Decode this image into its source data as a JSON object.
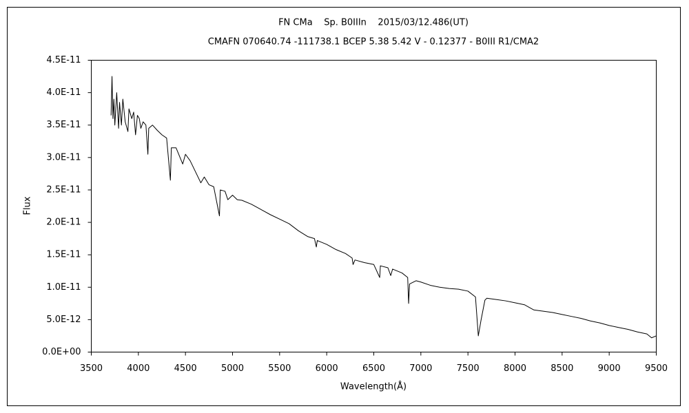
{
  "chart_data": {
    "type": "line",
    "title": "FN CMa    Sp. B0IIIn    2015/03/12.486(UT)",
    "subtitle": "CMAFN 070640.74 -111738.1 BCEP 5.38 5.42 V - 0.12377 - B0III R1/CMA2",
    "xlabel": "Wavelength(Å)",
    "ylabel": "Flux",
    "xlim": [
      3500,
      9500
    ],
    "xticks": [
      3500,
      4000,
      4500,
      5000,
      5500,
      6000,
      6500,
      7000,
      7500,
      8000,
      8500,
      9000,
      9500
    ],
    "ylim": [
      0,
      4.5e-11
    ],
    "yticks": [
      {
        "value": 0,
        "label": "0.0E+00"
      },
      {
        "value": 5e-12,
        "label": "5.0E-12"
      },
      {
        "value": 1e-11,
        "label": "1.0E-11"
      },
      {
        "value": 1.5e-11,
        "label": "1.5E-11"
      },
      {
        "value": 2e-11,
        "label": "2.0E-11"
      },
      {
        "value": 2.5e-11,
        "label": "2.5E-11"
      },
      {
        "value": 3e-11,
        "label": "3.0E-11"
      },
      {
        "value": 3.5e-11,
        "label": "3.5E-11"
      },
      {
        "value": 4e-11,
        "label": "4.0E-11"
      },
      {
        "value": 4.5e-11,
        "label": "4.5E-11"
      }
    ],
    "grid": false,
    "x": [
      3710,
      3720,
      3730,
      3740,
      3750,
      3770,
      3790,
      3800,
      3820,
      3835,
      3860,
      3889,
      3900,
      3930,
      3950,
      3970,
      3990,
      4010,
      4026,
      4050,
      4080,
      4101,
      4110,
      4150,
      4200,
      4250,
      4300,
      4340,
      4350,
      4400,
      4471,
      4500,
      4550,
      4600,
      4663,
      4700,
      4750,
      4800,
      4861,
      4870,
      4920,
      4950,
      5000,
      5050,
      5100,
      5200,
      5300,
      5400,
      5500,
      5600,
      5700,
      5800,
      5870,
      5890,
      5900,
      6000,
      6100,
      6200,
      6270,
      6280,
      6300,
      6400,
      6500,
      6563,
      6570,
      6650,
      6680,
      6700,
      6800,
      6860,
      6870,
      6880,
      6950,
      7000,
      7100,
      7200,
      7300,
      7400,
      7500,
      7580,
      7600,
      7610,
      7640,
      7680,
      7700,
      7800,
      7900,
      8000,
      8100,
      8200,
      8300,
      8400,
      8500,
      8600,
      8700,
      8800,
      8900,
      9000,
      9100,
      9200,
      9300,
      9400,
      9450,
      9500
    ],
    "series": [
      {
        "name": "Flux",
        "color": "#000000",
        "values": [
          3.65e-11,
          4.25e-11,
          3.6e-11,
          3.9e-11,
          3.5e-11,
          4e-11,
          3.45e-11,
          3.85e-11,
          3.5e-11,
          3.9e-11,
          3.55e-11,
          3.4e-11,
          3.75e-11,
          3.6e-11,
          3.7e-11,
          3.35e-11,
          3.65e-11,
          3.6e-11,
          3.45e-11,
          3.55e-11,
          3.5e-11,
          3.05e-11,
          3.45e-11,
          3.5e-11,
          3.42e-11,
          3.35e-11,
          3.3e-11,
          2.65e-11,
          3.15e-11,
          3.15e-11,
          2.9e-11,
          3.05e-11,
          2.95e-11,
          2.8e-11,
          2.61e-11,
          2.7e-11,
          2.58e-11,
          2.55e-11,
          2.1e-11,
          2.5e-11,
          2.48e-11,
          2.35e-11,
          2.42e-11,
          2.35e-11,
          2.34e-11,
          2.28e-11,
          2.2e-11,
          2.12e-11,
          2.05e-11,
          1.98e-11,
          1.87e-11,
          1.78e-11,
          1.75e-11,
          1.62e-11,
          1.72e-11,
          1.66e-11,
          1.58e-11,
          1.52e-11,
          1.45e-11,
          1.35e-11,
          1.42e-11,
          1.38e-11,
          1.35e-11,
          1.15e-11,
          1.33e-11,
          1.3e-11,
          1.18e-11,
          1.28e-11,
          1.22e-11,
          1.15e-11,
          7.5e-12,
          1.05e-11,
          1.1e-11,
          1.08e-11,
          1.03e-11,
          1e-11,
          9.8e-12,
          9.7e-12,
          9.4e-12,
          8.5e-12,
          4.5e-12,
          2.5e-12,
          5e-12,
          8e-12,
          8.3e-12,
          8.1e-12,
          7.9e-12,
          7.6e-12,
          7.3e-12,
          6.5e-12,
          6.3e-12,
          6.1e-12,
          5.8e-12,
          5.5e-12,
          5.2e-12,
          4.8e-12,
          4.5e-12,
          4.1e-12,
          3.8e-12,
          3.5e-12,
          3.1e-12,
          2.8e-12,
          2.2e-12,
          2.5e-12
        ]
      }
    ]
  }
}
